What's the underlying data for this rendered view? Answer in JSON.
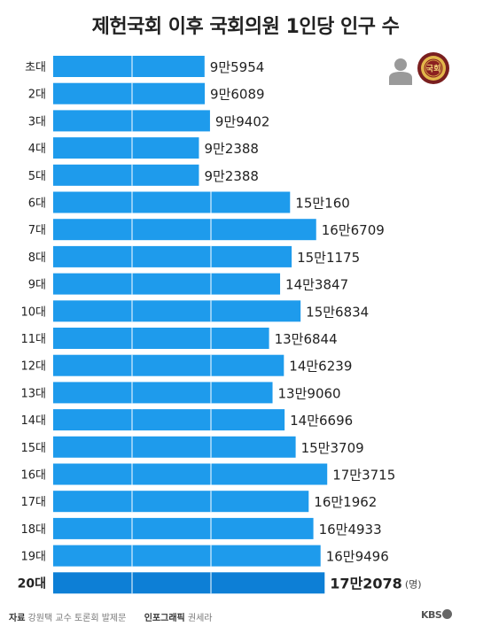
{
  "title": "제헌국회 이후 국회의원 1인당 인구 수",
  "unit": "(명)",
  "footer": {
    "source_label": "자료",
    "source": "강원택 교수 토론회 발제문",
    "graphic_label": "인포그래픽",
    "graphic": "권세라"
  },
  "brand": "KBS",
  "seal_text": "국회",
  "colors": {
    "bar": "#1E9BEC",
    "bar_highlight": "#0D7FD6",
    "gridline": "#ffffff"
  },
  "icons": [
    "person-icon",
    "national-assembly-seal-icon"
  ],
  "chart_data": {
    "type": "bar",
    "orientation": "horizontal",
    "title": "제헌국회 이후 국회의원 1인당 인구 수",
    "categories": [
      "초대",
      "2대",
      "3대",
      "4대",
      "5대",
      "6대",
      "7대",
      "8대",
      "9대",
      "10대",
      "11대",
      "12대",
      "13대",
      "14대",
      "15대",
      "16대",
      "17대",
      "18대",
      "19대",
      "20대"
    ],
    "values": [
      95954,
      96089,
      99402,
      92388,
      92388,
      150160,
      166709,
      151175,
      143847,
      156834,
      136844,
      146239,
      139060,
      146696,
      153709,
      173715,
      161962,
      164933,
      169496,
      172078
    ],
    "value_labels": [
      "9만5954",
      "9만6089",
      "9만9402",
      "9만2388",
      "9만2388",
      "15만160",
      "16만6709",
      "15만1175",
      "14만3847",
      "15만6834",
      "13만6844",
      "14만6239",
      "13만9060",
      "14만6696",
      "15만3709",
      "17만3715",
      "16만1962",
      "16만4933",
      "16만9496",
      "17만2078"
    ],
    "highlight_index": 19,
    "grid": true,
    "xlim": [
      0,
      175000
    ]
  }
}
